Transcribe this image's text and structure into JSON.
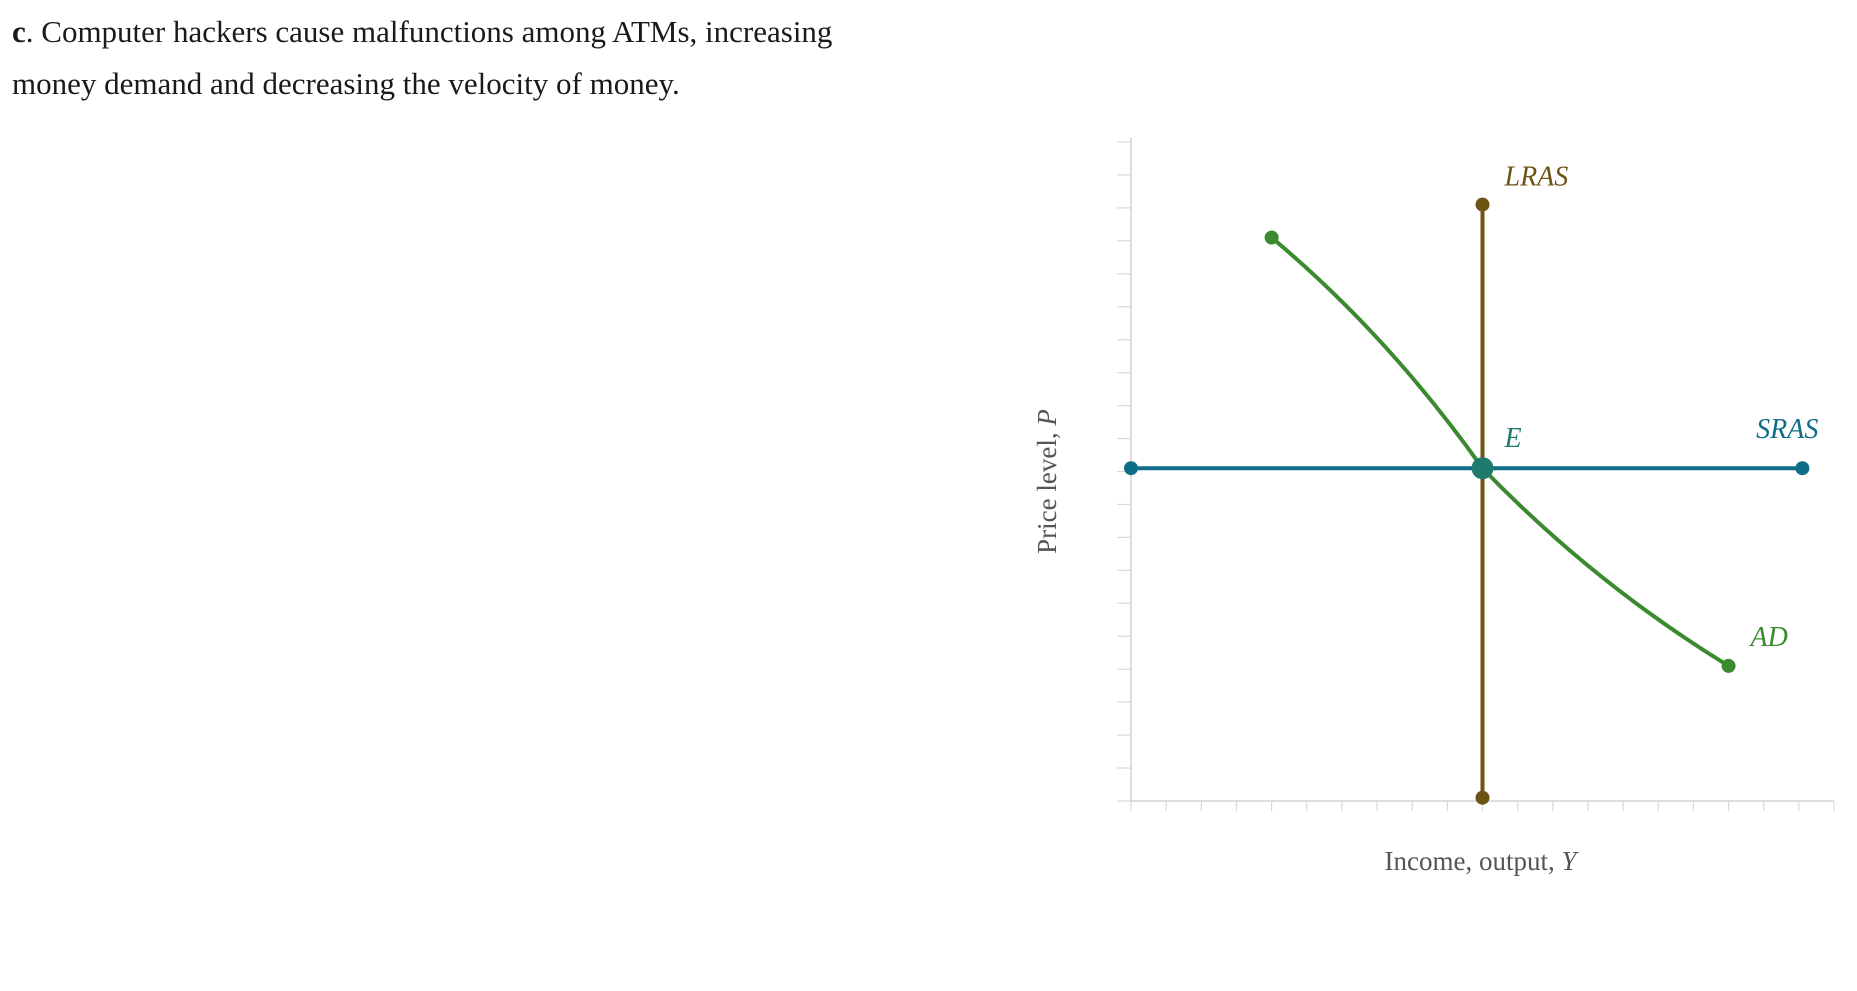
{
  "question": {
    "letter": "c",
    "text": ". Computer hackers cause malfunctions among ATMs, increasing money demand and decreasing the velocity of money."
  },
  "graph": {
    "x_axis_label": "Income, output, ",
    "x_axis_var": "Y",
    "y_axis_label": "Price level, ",
    "y_axis_var": "P",
    "x_range": [
      0,
      20
    ],
    "y_range": [
      0,
      20
    ],
    "x_tick_count": 20,
    "y_tick_count": 20,
    "curves": {
      "lras": {
        "label": "LRAS",
        "color": "#6e5414",
        "points": [
          [
            10,
            18.1
          ],
          [
            10,
            0.1
          ]
        ]
      },
      "sras": {
        "label": "SRAS",
        "color": "#0f6e87",
        "points": [
          [
            0,
            10.1
          ],
          [
            19.1,
            10.1
          ]
        ]
      },
      "ad": {
        "label": "AD",
        "color": "#3b8a2f",
        "points": [
          [
            4,
            17.1
          ],
          [
            10,
            10.1
          ],
          [
            17,
            4.1
          ]
        ]
      }
    },
    "equilibrium": {
      "label": "E",
      "color": "#1f7a6e",
      "point": [
        10,
        10.1
      ]
    }
  }
}
